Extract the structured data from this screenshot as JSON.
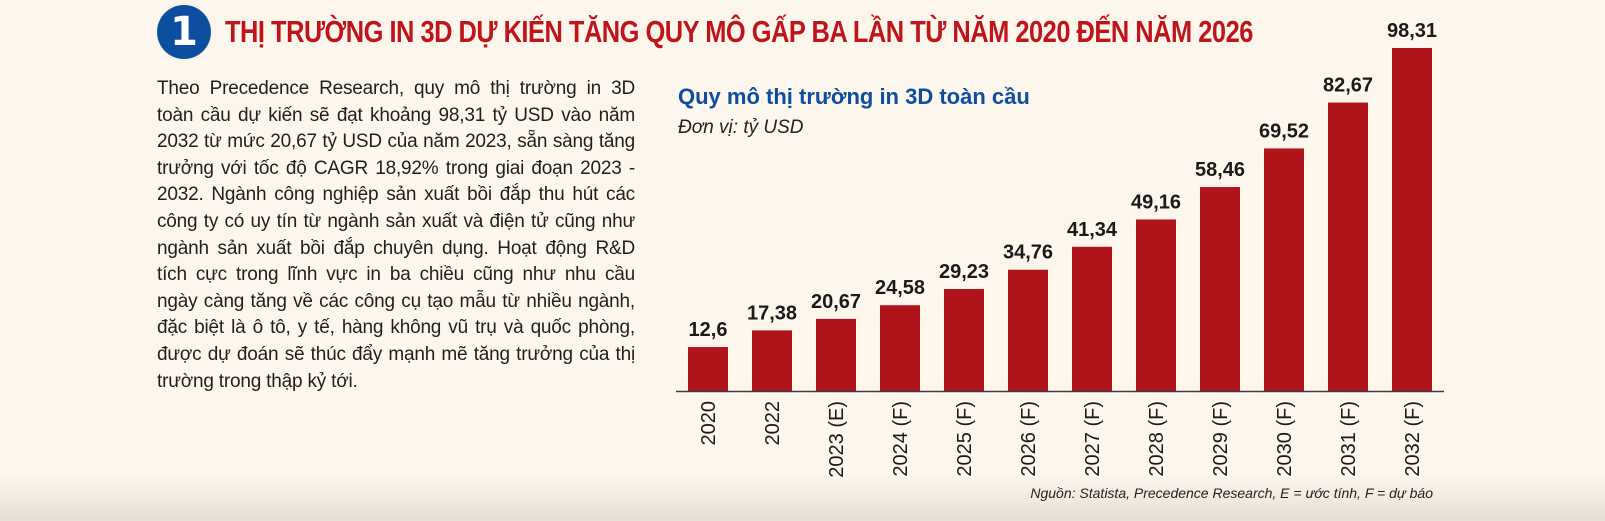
{
  "header": {
    "number": "1",
    "title": "THỊ TRƯỜNG IN 3D DỰ KIẾN TĂNG QUY MÔ GẤP BA LẦN TỪ NĂM 2020 ĐẾN NĂM 2026"
  },
  "body_text": "Theo Precedence Research, quy mô thị trường in 3D toàn cầu dự kiến sẽ đạt khoảng 98,31 tỷ USD vào năm 2032 từ mức 20,67 tỷ USD của năm 2023, sẵn sàng tăng trưởng với tốc độ CAGR 18,92% trong giai đoạn 2023 - 2032. Ngành công nghiệp sản xuất bồi đắp thu hút các công ty có uy tín từ ngành sản xuất và điện tử cũng như ngành sản xuất bồi đắp chuyên dụng. Hoạt động R&D tích cực trong lĩnh vực in ba chiều cũng như nhu cầu ngày càng tăng về các công cụ tạo mẫu từ nhiều ngành, đặc biệt là ô tô, y tế, hàng không vũ trụ và quốc phòng, được dự đoán sẽ thúc đẩy mạnh mẽ tăng trưởng của thị trường trong thập kỷ tới.",
  "chart_data": {
    "type": "bar",
    "title": "Quy mô thị trường in 3D toàn cầu",
    "subtitle": "Đơn vị: tỷ USD",
    "categories": [
      "2020",
      "2022",
      "2023 (E)",
      "2024 (F)",
      "2025 (F)",
      "2026 (F)",
      "2027 (F)",
      "2028 (F)",
      "2029 (F)",
      "2030 (F)",
      "2031 (F)",
      "2032 (F)"
    ],
    "values": [
      12.6,
      17.38,
      20.67,
      24.58,
      29.23,
      34.76,
      41.34,
      49.16,
      58.46,
      69.52,
      82.67,
      98.31
    ],
    "value_labels": [
      "12,6",
      "17,38",
      "20,67",
      "24,58",
      "29,23",
      "34,76",
      "41,34",
      "49,16",
      "58,46",
      "69,52",
      "82,67",
      "98,31"
    ],
    "ylim": [
      0,
      98.31
    ],
    "grid": false,
    "legend": "none",
    "bar_color": "#b0141b",
    "source": "Nguồn: Statista, Precedence Research, E = ước tính, F = dự báo"
  },
  "colors": {
    "background": "#fdf6ec",
    "accent_red": "#c0141b",
    "accent_blue": "#0d4ea1"
  }
}
